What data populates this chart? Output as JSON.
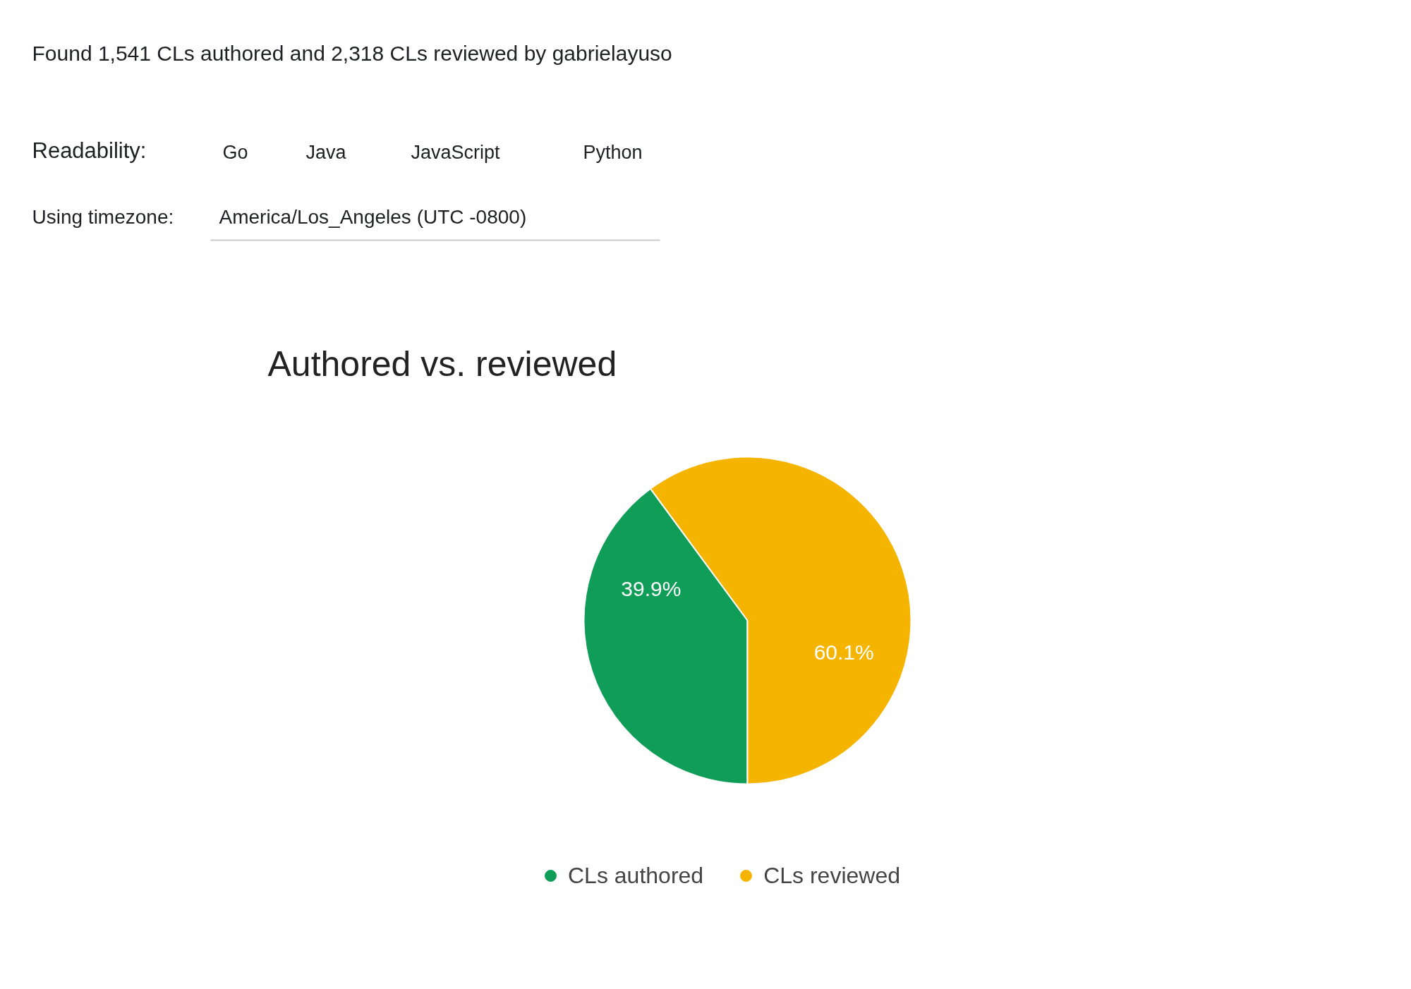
{
  "chart_data": {
    "type": "pie",
    "title": "Authored vs. reviewed",
    "annotations": [
      "Found 1,541 CLs authored and 2,318 CLs reviewed by gabrielayuso",
      "Readability:",
      "Go",
      "Java",
      "JavaScript",
      "Python",
      "Using timezone:",
      "America/Los_Angeles (UTC -0800)"
    ],
    "categories": [
      "CLs authored",
      "CLs reviewed"
    ],
    "values": [
      39.9,
      60.1
    ],
    "colors": [
      "#0f9d58",
      "#f4b400"
    ],
    "value_labels": [
      "39.9%",
      "60.1%"
    ],
    "legend": "bottom"
  }
}
